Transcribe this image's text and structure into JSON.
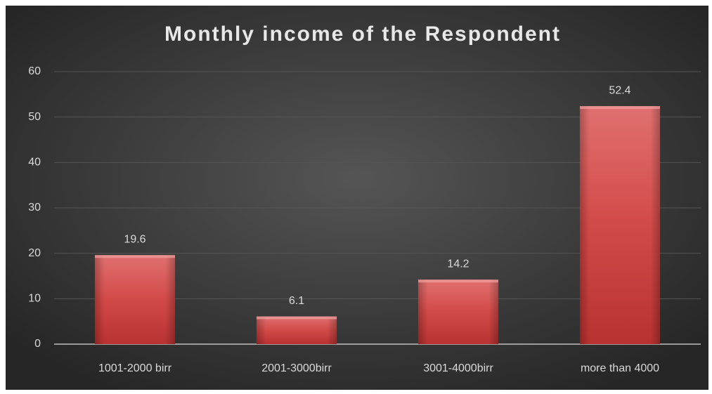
{
  "chart_data": {
    "type": "bar",
    "title": "Monthly income of the Respondent",
    "categories": [
      "1001-2000 birr",
      "2001-3000birr",
      "3001-4000birr",
      "more than 4000"
    ],
    "values": [
      19.6,
      6.1,
      14.2,
      52.4
    ],
    "color": "#d9534f",
    "ylim": [
      0,
      60
    ],
    "yticks": [
      0,
      10,
      20,
      30,
      40,
      50,
      60
    ],
    "grid": true
  }
}
